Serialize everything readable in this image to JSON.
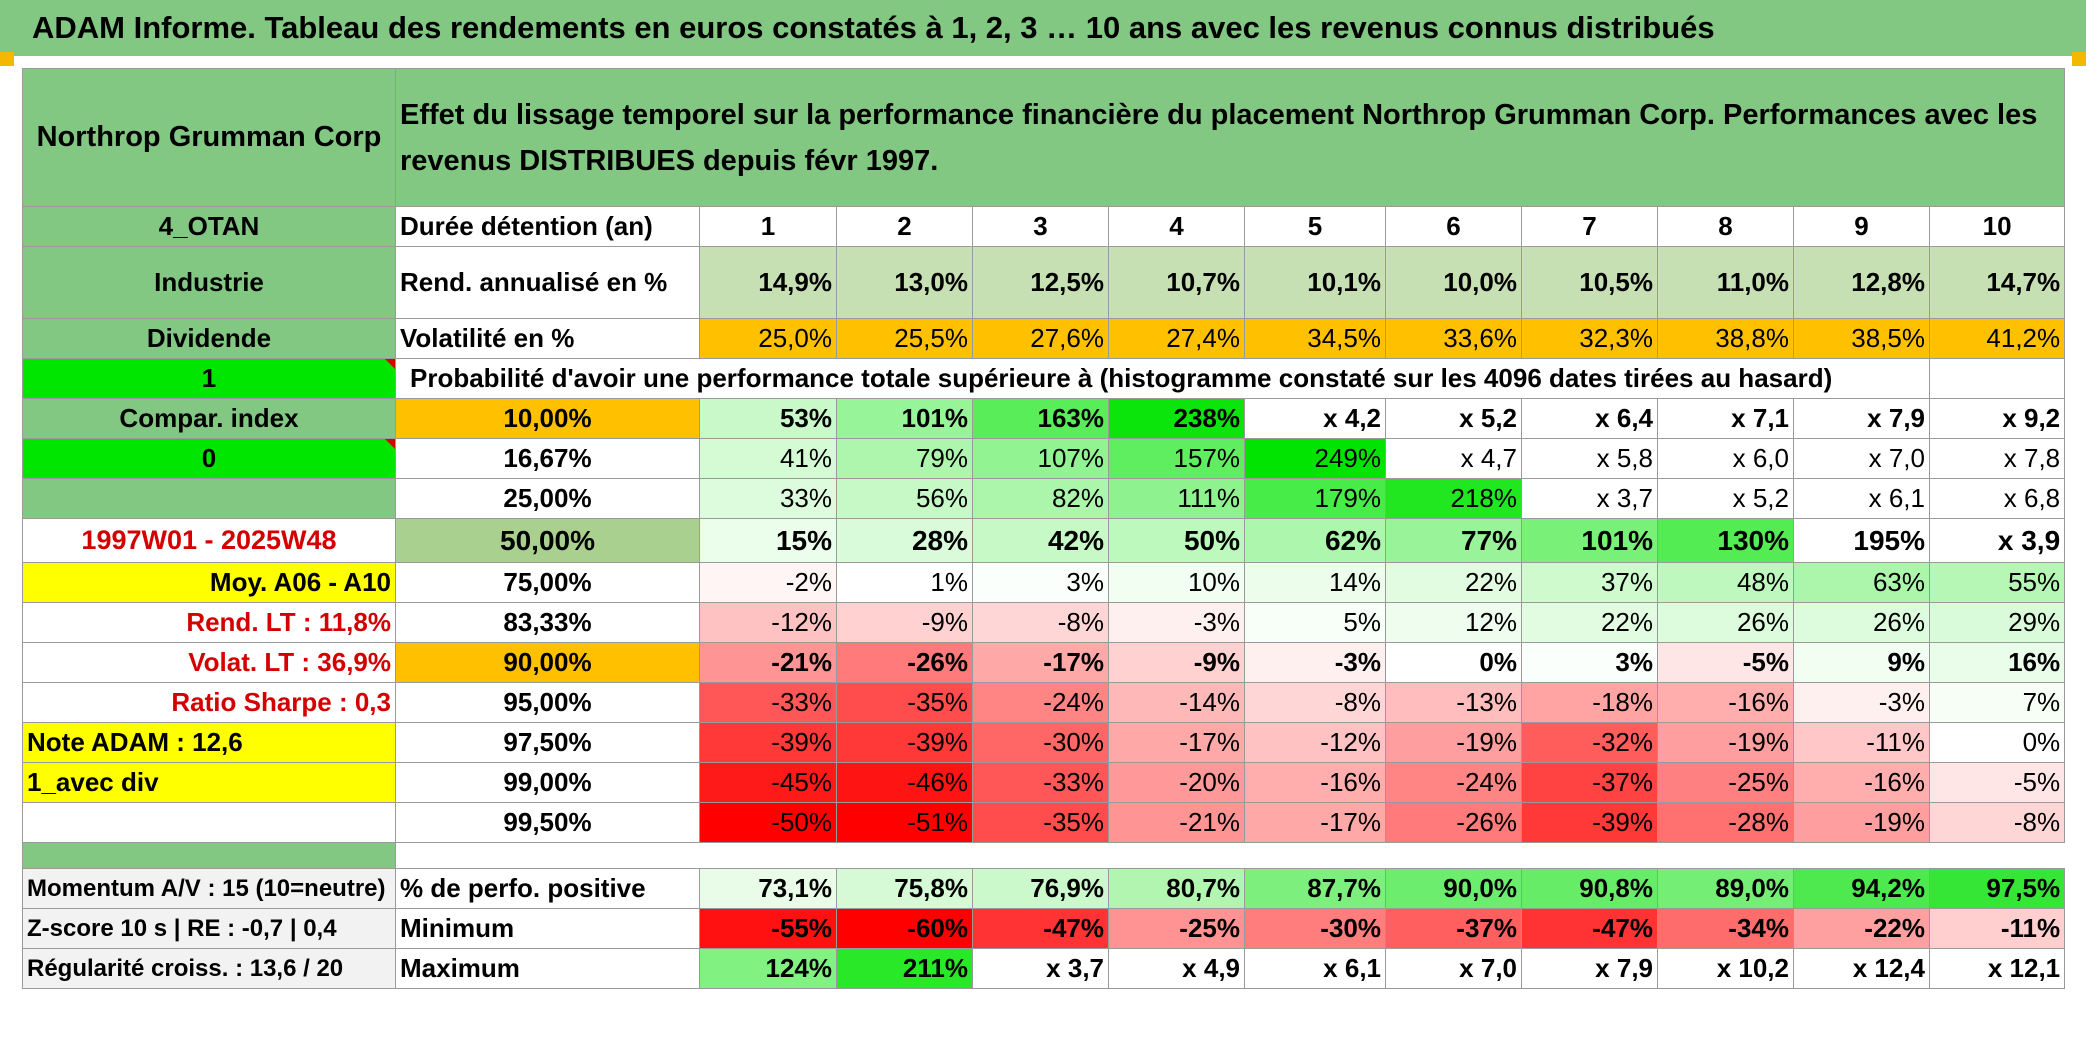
{
  "title": "ADAM Informe. Tableau des rendements en euros constatés à 1, 2, 3 … 10 ans avec les revenus connus distribués",
  "header": {
    "asset_name": "Northrop Grumman Corp",
    "description": "Effet du lissage temporel sur la performance financière du placement Northrop Grumman Corp. Performances avec les revenus DISTRIBUES depuis févr 1997."
  },
  "side": {
    "group": "4_OTAN",
    "sector": "Industrie",
    "dividend": "Dividende",
    "one": "1",
    "compar_index": "Compar. index",
    "zero": "0",
    "period": "1997W01 - 2025W48",
    "moy": "Moy. A06 - A10",
    "rend_lt": "Rend. LT :    11,8%",
    "volat_lt": "Volat. LT :    36,9%",
    "sharpe": "Ratio Sharpe :    0,3",
    "note": "Note ADAM : 12,6",
    "avec_div": "1_avec div",
    "momentum": "Momentum A/V : 15 (10=neutre)",
    "zscore": "Z-score 10 s | RE : -0,7 | 0,4",
    "regularite": "Régularité croiss. : 13,6 / 20"
  },
  "row_labels": {
    "duree": "Durée détention (an)",
    "rend": "Rend. annualisé en %",
    "vol": "Volatilité en %",
    "proba": "Probabilité d'avoir une performance totale supérieure à (histogramme constaté sur les 4096 dates tirées au hasard)",
    "positive": "% de perfo. positive",
    "minimum": "Minimum",
    "maximum": "Maximum"
  },
  "years": [
    "1",
    "2",
    "3",
    "4",
    "5",
    "6",
    "7",
    "8",
    "9",
    "10"
  ],
  "rendement": [
    "14,9%",
    "13,0%",
    "12,5%",
    "10,7%",
    "10,1%",
    "10,0%",
    "10,5%",
    "11,0%",
    "12,8%",
    "14,7%"
  ],
  "volatilite": [
    "25,0%",
    "25,5%",
    "27,6%",
    "27,4%",
    "34,5%",
    "33,6%",
    "32,3%",
    "38,8%",
    "38,5%",
    "41,2%"
  ],
  "quantiles": [
    {
      "label": "10,00%",
      "values": [
        "53%",
        "101%",
        "163%",
        "238%",
        "x 4,2",
        "x 5,2",
        "x 6,4",
        "x 7,1",
        "x 7,9",
        "x 9,2"
      ]
    },
    {
      "label": "16,67%",
      "values": [
        "41%",
        "79%",
        "107%",
        "157%",
        "249%",
        "x 4,7",
        "x 5,8",
        "x 6,0",
        "x 7,0",
        "x 7,8"
      ]
    },
    {
      "label": "25,00%",
      "values": [
        "33%",
        "56%",
        "82%",
        "111%",
        "179%",
        "218%",
        "x 3,7",
        "x 5,2",
        "x 6,1",
        "x 6,8"
      ]
    },
    {
      "label": "50,00%",
      "values": [
        "15%",
        "28%",
        "42%",
        "50%",
        "62%",
        "77%",
        "101%",
        "130%",
        "195%",
        "x 3,9"
      ]
    },
    {
      "label": "75,00%",
      "values": [
        "-2%",
        "1%",
        "3%",
        "10%",
        "14%",
        "22%",
        "37%",
        "48%",
        "63%",
        "55%"
      ]
    },
    {
      "label": "83,33%",
      "values": [
        "-12%",
        "-9%",
        "-8%",
        "-3%",
        "5%",
        "12%",
        "22%",
        "26%",
        "26%",
        "29%"
      ]
    },
    {
      "label": "90,00%",
      "values": [
        "-21%",
        "-26%",
        "-17%",
        "-9%",
        "-3%",
        "0%",
        "3%",
        "-5%",
        "9%",
        "16%"
      ]
    },
    {
      "label": "95,00%",
      "values": [
        "-33%",
        "-35%",
        "-24%",
        "-14%",
        "-8%",
        "-13%",
        "-18%",
        "-16%",
        "-3%",
        "7%"
      ]
    },
    {
      "label": "97,50%",
      "values": [
        "-39%",
        "-39%",
        "-30%",
        "-17%",
        "-12%",
        "-19%",
        "-32%",
        "-19%",
        "-11%",
        "0%"
      ]
    },
    {
      "label": "99,00%",
      "values": [
        "-45%",
        "-46%",
        "-33%",
        "-20%",
        "-16%",
        "-24%",
        "-37%",
        "-25%",
        "-16%",
        "-5%"
      ]
    },
    {
      "label": "99,50%",
      "values": [
        "-50%",
        "-51%",
        "-35%",
        "-21%",
        "-17%",
        "-26%",
        "-39%",
        "-28%",
        "-19%",
        "-8%"
      ]
    }
  ],
  "positive": [
    "73,1%",
    "75,8%",
    "76,9%",
    "80,7%",
    "87,7%",
    "90,0%",
    "90,8%",
    "89,0%",
    "94,2%",
    "97,5%"
  ],
  "minimum": [
    "-55%",
    "-60%",
    "-47%",
    "-25%",
    "-30%",
    "-37%",
    "-47%",
    "-34%",
    "-22%",
    "-11%"
  ],
  "maximum": [
    "124%",
    "211%",
    "x 3,7",
    "x 4,9",
    "x 6,1",
    "x 7,0",
    "x 7,9",
    "x 10,2",
    "x 12,4",
    "x 12,1"
  ],
  "colors": {
    "header_green": "#82c782",
    "yellow": "#ffff00",
    "orange": "#ffc000",
    "lime": "#00e600",
    "red_text": "#d40000"
  }
}
